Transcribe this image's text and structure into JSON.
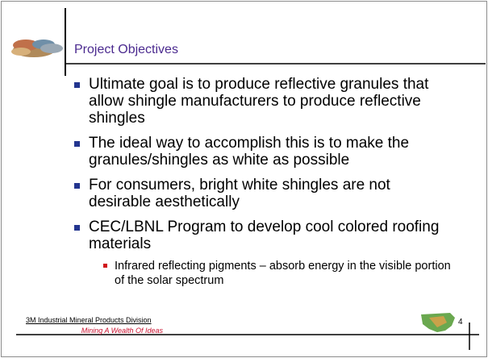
{
  "header": {
    "title": "Project Objectives"
  },
  "bullets": [
    {
      "text": "Ultimate goal is to produce reflective granules that allow shingle manufacturers to produce reflective shingles"
    },
    {
      "text": "The ideal way to accomplish this is to make the granules/shingles as white as possible"
    },
    {
      "text": "For consumers, bright white shingles are not desirable aesthetically"
    },
    {
      "text": "CEC/LBNL Program to develop cool colored roofing materials",
      "subbullets": [
        "Infrared reflecting pigments – absorb energy in the visible portion of the solar spectrum"
      ]
    }
  ],
  "footer": {
    "division": "3M Industrial Mineral Products Division",
    "tagline": "Mining A Wealth Of Ideas",
    "page_number": "4"
  }
}
